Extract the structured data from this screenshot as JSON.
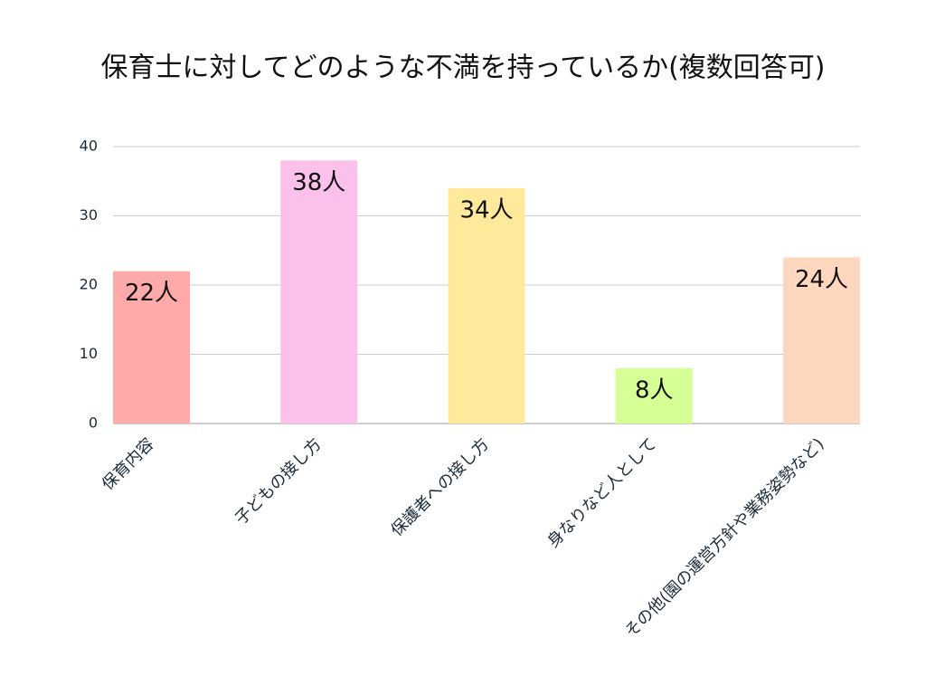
{
  "chart_data": {
    "type": "bar",
    "title": "保育士に対してどのような不満を持っているか(複数回答可)",
    "categories": [
      "保育内容",
      "子どもの接し方",
      "保護者への接し方",
      "身なりなど人として",
      "その他(園の運営方針や業務姿勢など)"
    ],
    "values": [
      22,
      38,
      34,
      8,
      24
    ],
    "value_labels": [
      "22人",
      "38人",
      "34人",
      "8人",
      "24人"
    ],
    "colors": [
      "#ffaaaa",
      "#fcc1ea",
      "#ffe99a",
      "#d6ff95",
      "#ffd6be"
    ],
    "ylim": [
      0,
      40
    ],
    "yticks": [
      0,
      10,
      20,
      30,
      40
    ],
    "grid": true
  }
}
